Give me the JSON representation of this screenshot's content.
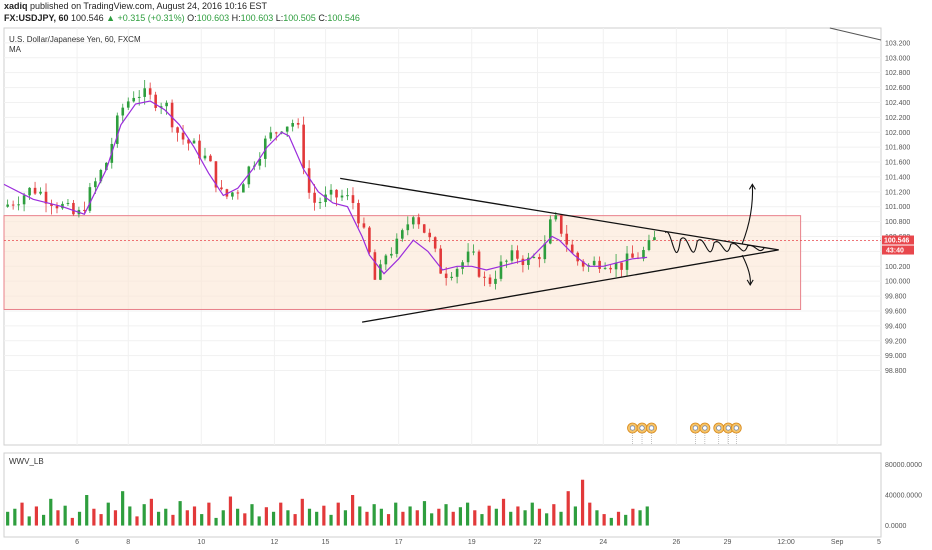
{
  "header": {
    "author": "xadiq",
    "published_text": "published on TradingView.com, August 24, 2016 10:16 EST",
    "symbol": "FX:USDJPY, 60",
    "last": "100.546",
    "change": "▲ +0.315 (+0.31%)",
    "o_label": "O:",
    "o_value": "100.603",
    "h_label": "H:",
    "h_value": "100.603",
    "l_label": "L:",
    "l_value": "100.505",
    "c_label": "C:",
    "c_value": "100.546"
  },
  "legend": {
    "instrument": "U.S. Dollar/Japanese Yen, 60, FXCM",
    "indicator": "MA",
    "volume_indicator": "WWV_LB"
  },
  "colors": {
    "up": "#2e9e3e",
    "down": "#e2393a",
    "ma": "#9b2ddc",
    "zone_fill": "#fbe6d3",
    "zone_border": "#e8808a",
    "price_label_bg": "#e8474c"
  },
  "price_labels": {
    "last": "100.546",
    "countdown": "43:40"
  },
  "chart_data": [
    {
      "type": "candlestick",
      "title": "U.S. Dollar/Japanese Yen, 60, FXCM",
      "ylim": [
        97.8,
        103.4
      ],
      "y_ticks": [
        "103.200",
        "103.000",
        "102.800",
        "102.600",
        "102.400",
        "102.200",
        "102.000",
        "101.800",
        "101.600",
        "101.400",
        "101.200",
        "101.000",
        "100.800",
        "100.600",
        "100.400",
        "100.200",
        "100.000",
        "99.800",
        "99.600",
        "99.400",
        "99.200",
        "99.000",
        "98.800"
      ],
      "x_ticks": [
        "6",
        "8",
        "10",
        "12",
        "15",
        "17",
        "19",
        "22",
        "24",
        "26",
        "29",
        "12:00",
        "Sep",
        "5"
      ],
      "close_path": [
        [
          0,
          101.0
        ],
        [
          4,
          101.25
        ],
        [
          8,
          101.0
        ],
        [
          10,
          100.85
        ],
        [
          14,
          101.6
        ],
        [
          16,
          102.3
        ],
        [
          18,
          102.55
        ],
        [
          20,
          102.45
        ],
        [
          22,
          102.4
        ],
        [
          24,
          101.95
        ],
        [
          26,
          101.8
        ],
        [
          28,
          101.6
        ],
        [
          30,
          101.1
        ],
        [
          32,
          101.25
        ],
        [
          34,
          101.6
        ],
        [
          36,
          101.9
        ],
        [
          38,
          102.1
        ],
        [
          40,
          102.15
        ],
        [
          41,
          101.6
        ],
        [
          42,
          101.05
        ],
        [
          44,
          101.1
        ],
        [
          46,
          101.15
        ],
        [
          48,
          101.05
        ],
        [
          50,
          100.35
        ],
        [
          51,
          99.9
        ],
        [
          52,
          100.35
        ],
        [
          54,
          100.5
        ],
        [
          56,
          100.95
        ],
        [
          58,
          100.6
        ],
        [
          60,
          100.1
        ],
        [
          62,
          100.2
        ],
        [
          64,
          100.35
        ],
        [
          66,
          99.95
        ],
        [
          68,
          100.2
        ],
        [
          70,
          100.35
        ],
        [
          72,
          100.25
        ],
        [
          74,
          100.45
        ],
        [
          75,
          100.85
        ],
        [
          76,
          100.75
        ],
        [
          78,
          100.3
        ],
        [
          80,
          100.2
        ],
        [
          82,
          100.3
        ],
        [
          84,
          100.2
        ],
        [
          86,
          100.3
        ],
        [
          88,
          100.42
        ],
        [
          89,
          100.55
        ]
      ],
      "last": 100.546,
      "moving_average": [
        [
          0,
          101.3
        ],
        [
          4,
          101.1
        ],
        [
          8,
          101.0
        ],
        [
          11,
          100.9
        ],
        [
          14,
          101.5
        ],
        [
          16,
          102.1
        ],
        [
          18,
          102.38
        ],
        [
          20,
          102.42
        ],
        [
          22,
          102.3
        ],
        [
          24,
          102.1
        ],
        [
          26,
          101.8
        ],
        [
          28,
          101.45
        ],
        [
          30,
          101.15
        ],
        [
          32,
          101.25
        ],
        [
          34,
          101.5
        ],
        [
          36,
          101.8
        ],
        [
          38,
          102.0
        ],
        [
          39,
          101.95
        ],
        [
          41,
          101.5
        ],
        [
          43,
          101.2
        ],
        [
          45,
          101.05
        ],
        [
          47,
          101.0
        ],
        [
          49,
          100.6
        ],
        [
          50,
          100.35
        ],
        [
          52,
          100.1
        ],
        [
          54,
          100.3
        ],
        [
          56,
          100.55
        ],
        [
          58,
          100.4
        ],
        [
          60,
          100.15
        ],
        [
          62,
          100.2
        ],
        [
          64,
          100.2
        ],
        [
          66,
          100.15
        ],
        [
          68,
          100.2
        ],
        [
          70,
          100.25
        ],
        [
          72,
          100.3
        ],
        [
          74,
          100.5
        ],
        [
          75,
          100.6
        ],
        [
          76,
          100.55
        ],
        [
          78,
          100.35
        ],
        [
          80,
          100.2
        ],
        [
          82,
          100.2
        ],
        [
          84,
          100.25
        ],
        [
          86,
          100.3
        ],
        [
          88,
          100.32
        ]
      ],
      "support_zone": [
        99.62,
        100.88
      ],
      "trendlines": [
        {
          "name": "upper",
          "from": [
            46,
            101.38
          ],
          "to": [
            106,
            100.42
          ]
        },
        {
          "name": "lower",
          "from": [
            49,
            99.45
          ],
          "to": [
            106,
            100.42
          ]
        }
      ],
      "grid": true
    },
    {
      "type": "bar",
      "title": "WWV_LB",
      "ylim": [
        -15000,
        95000
      ],
      "y_ticks": [
        "80000.0000",
        "40000.0000",
        "0.0000"
      ],
      "up_color": "#2e9e3e",
      "down_color": "#e2393a",
      "values": [
        18000,
        22000,
        30000,
        12000,
        25000,
        14000,
        35000,
        20000,
        26000,
        10000,
        18000,
        40000,
        22000,
        15000,
        30000,
        20000,
        45000,
        25000,
        12000,
        28000,
        35000,
        18000,
        22000,
        14000,
        32000,
        20000,
        25000,
        15000,
        30000,
        10000,
        20000,
        38000,
        22000,
        16000,
        28000,
        12000,
        24000,
        18000,
        30000,
        20000,
        15000,
        35000,
        22000,
        18000,
        26000,
        14000,
        30000,
        20000,
        40000,
        25000,
        18000,
        28000,
        22000,
        15000,
        30000,
        18000,
        25000,
        20000,
        32000,
        16000,
        22000,
        28000,
        18000,
        24000,
        30000,
        20000,
        15000,
        26000,
        22000,
        35000,
        18000,
        25000,
        20000,
        30000,
        22000,
        16000,
        28000,
        18000,
        45000,
        25000,
        60000,
        30000,
        20000,
        15000,
        10000,
        18000,
        14000,
        22000,
        20000,
        25000
      ],
      "signs": [
        1,
        1,
        -1,
        1,
        -1,
        1,
        1,
        -1,
        1,
        -1,
        1,
        1,
        -1,
        -1,
        1,
        -1,
        1,
        1,
        -1,
        1,
        -1,
        1,
        1,
        -1,
        1,
        -1,
        -1,
        1,
        -1,
        1,
        1,
        -1,
        1,
        -1,
        1,
        1,
        -1,
        1,
        -1,
        1,
        -1,
        -1,
        1,
        1,
        -1,
        1,
        -1,
        1,
        -1,
        1,
        -1,
        1,
        1,
        -1,
        1,
        -1,
        1,
        -1,
        1,
        1,
        -1,
        1,
        -1,
        1,
        1,
        -1,
        1,
        -1,
        1,
        -1,
        1,
        -1,
        1,
        1,
        -1,
        1,
        -1,
        1,
        -1,
        1,
        -1,
        -1,
        1,
        -1,
        1,
        -1,
        1,
        -1,
        1,
        1
      ]
    }
  ]
}
